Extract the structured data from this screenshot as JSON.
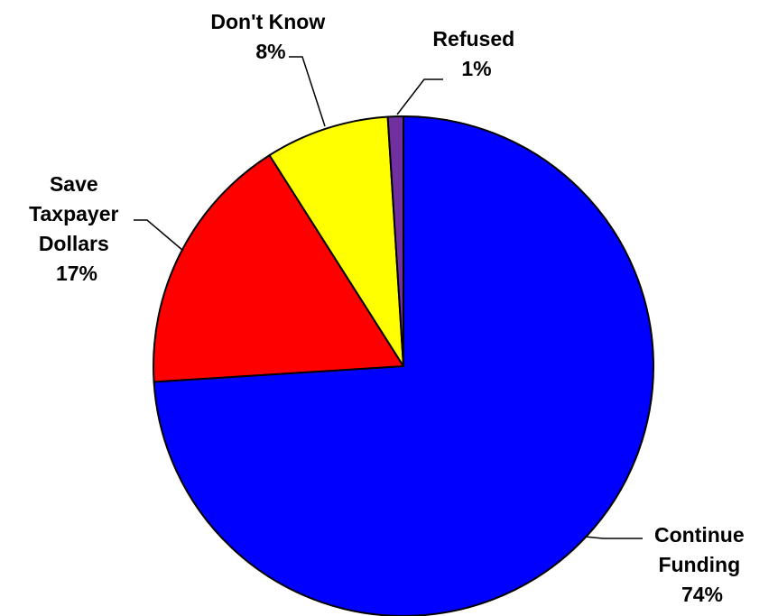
{
  "chart_data": {
    "type": "pie",
    "title": "",
    "start_angle_deg": 0,
    "direction": "clockwise",
    "slices": [
      {
        "label_lines": [
          "Continue",
          "Funding"
        ],
        "value": 74,
        "value_label": "74%",
        "color": "#0000FF"
      },
      {
        "label_lines": [
          "Save",
          "Taxpayer",
          "Dollars"
        ],
        "value": 17,
        "value_label": "17%",
        "color": "#FF0000"
      },
      {
        "label_lines": [
          "Don't Know"
        ],
        "value": 8,
        "value_label": "8%",
        "color": "#FFFF00"
      },
      {
        "label_lines": [
          "Refused"
        ],
        "value": 1,
        "value_label": "1%",
        "color": "#7030A0"
      }
    ]
  }
}
